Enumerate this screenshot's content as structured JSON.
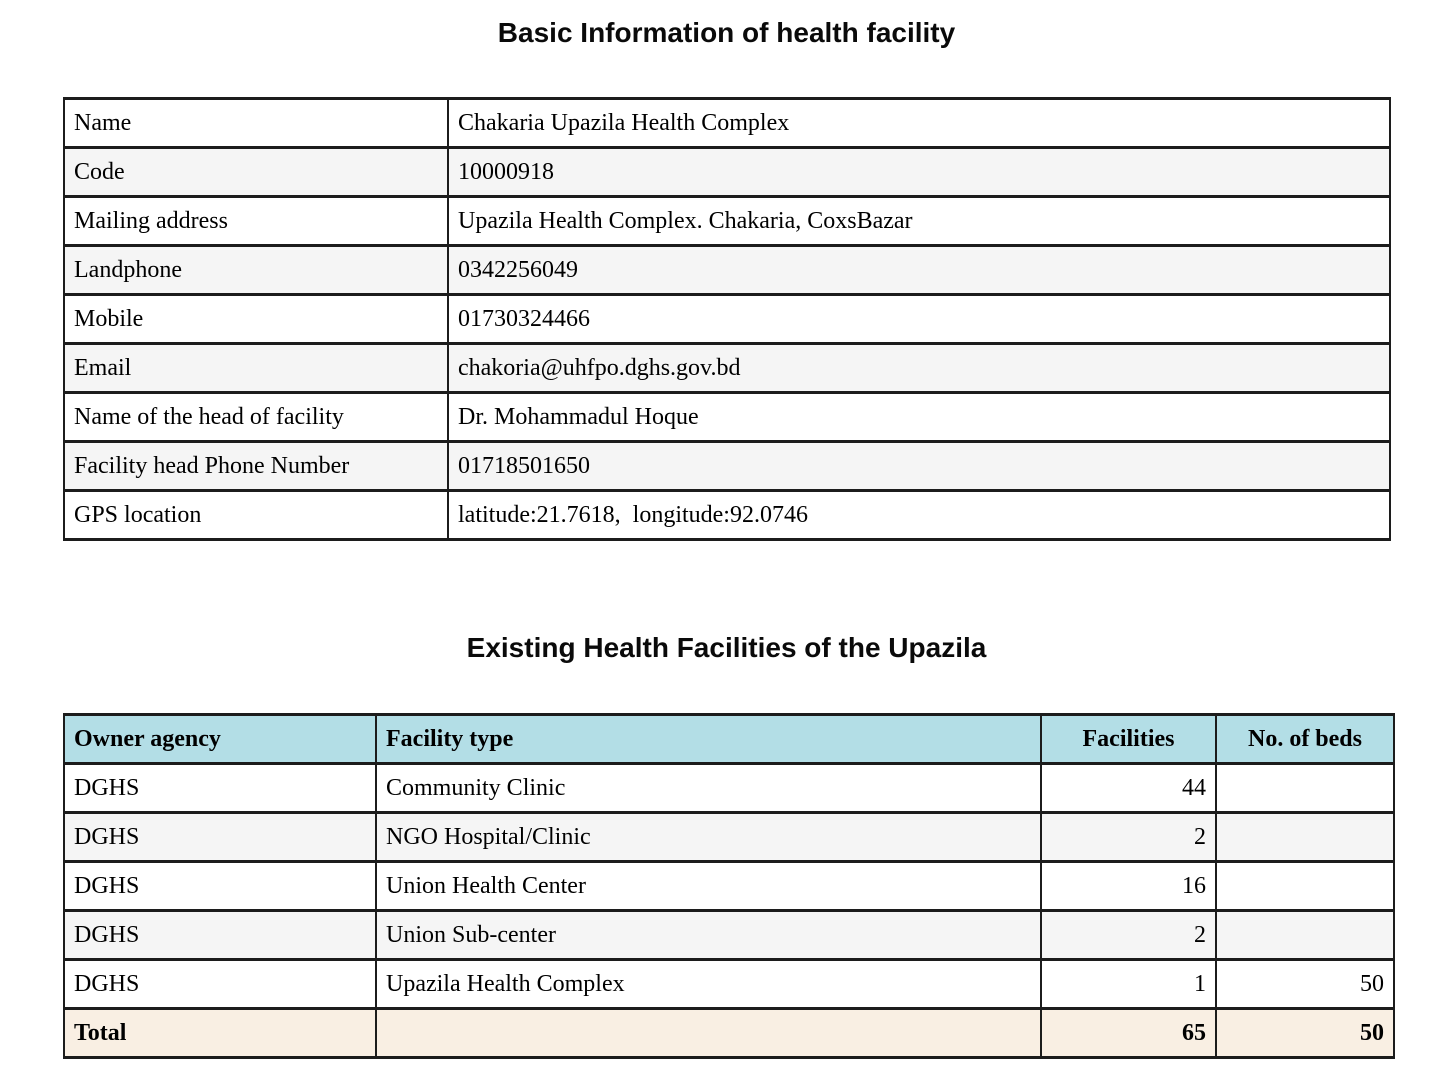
{
  "titles": {
    "basic_info": "Basic Information of health facility",
    "existing_facilities": "Existing Health Facilities of the Upazila"
  },
  "basic_info": {
    "rows": [
      {
        "label": "Name",
        "value": "Chakaria Upazila Health Complex"
      },
      {
        "label": "Code",
        "value": "10000918"
      },
      {
        "label": "Mailing address",
        "value": "Upazila Health Complex. Chakaria, CoxsBazar"
      },
      {
        "label": "Landphone",
        "value": "0342256049"
      },
      {
        "label": "Mobile",
        "value": "01730324466"
      },
      {
        "label": "Email",
        "value": "chakoria@uhfpo.dghs.gov.bd"
      },
      {
        "label": "Name of the head of facility",
        "value": "Dr. Mohammadul Hoque"
      },
      {
        "label": "Facility head Phone Number",
        "value": "01718501650"
      },
      {
        "label": "GPS location",
        "value": "latitude:21.7618,  longitude:92.0746"
      }
    ]
  },
  "facilities_table": {
    "headers": [
      "Owner agency",
      "Facility type",
      "Facilities",
      "No. of beds"
    ],
    "rows": [
      {
        "owner": "DGHS",
        "type": "Community Clinic",
        "facilities": "44",
        "beds": ""
      },
      {
        "owner": "DGHS",
        "type": "NGO Hospital/Clinic",
        "facilities": "2",
        "beds": ""
      },
      {
        "owner": "DGHS",
        "type": "Union Health Center",
        "facilities": "16",
        "beds": ""
      },
      {
        "owner": "DGHS",
        "type": "Union Sub-center",
        "facilities": "2",
        "beds": ""
      },
      {
        "owner": "DGHS",
        "type": "Upazila Health Complex",
        "facilities": "1",
        "beds": "50"
      }
    ],
    "total": {
      "label": "Total",
      "type": "",
      "facilities": "65",
      "beds": "50"
    }
  },
  "colors": {
    "table_header_bg": "#b3dee6",
    "total_row_bg": "#f9efe3",
    "alt_row_bg": "#f5f5f5",
    "border": "#1c1c1c"
  }
}
